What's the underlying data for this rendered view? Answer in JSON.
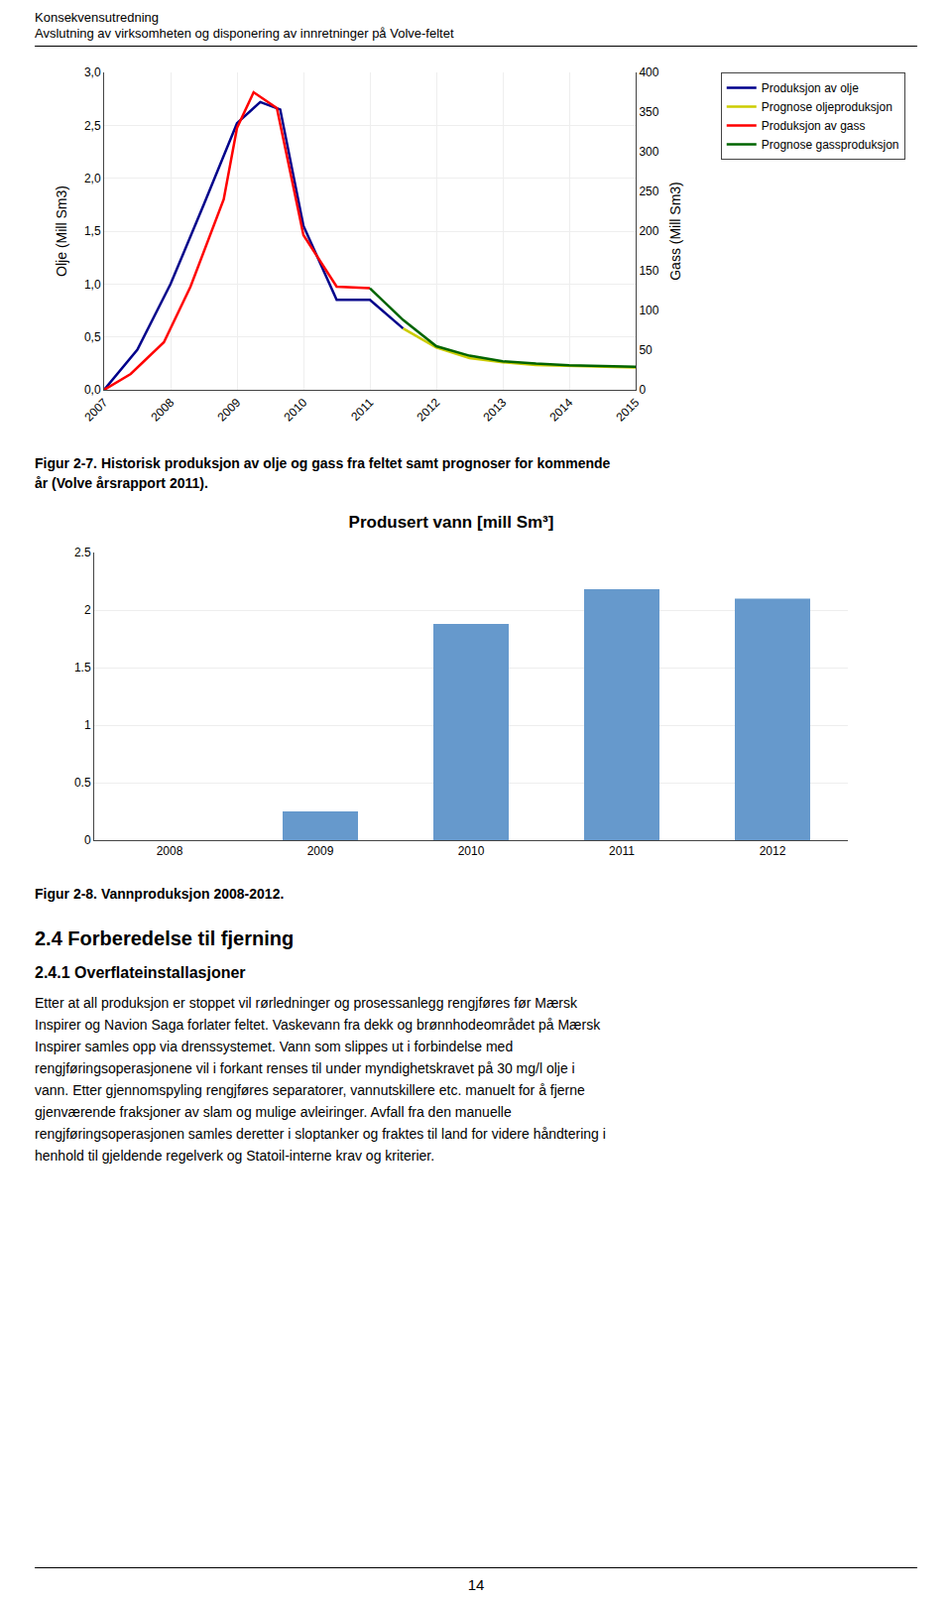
{
  "header": [
    "Konsekvensutredning",
    "Avslutning av virksomheten og disponering av innretninger på Volve-feltet"
  ],
  "chart_data": [
    {
      "type": "line",
      "ylabel": "Olje (Mill Sm3)",
      "y2label": "Gass (Mill Sm3)",
      "xlim": [
        2007,
        2015
      ],
      "xticks": [
        2007,
        2008,
        2009,
        2010,
        2011,
        2012,
        2013,
        2014,
        2015
      ],
      "ylim": [
        0,
        3.0
      ],
      "yticks": [
        {
          "value": 0.0,
          "label": "0,0"
        },
        {
          "value": 0.5,
          "label": "0,5"
        },
        {
          "value": 1.0,
          "label": "1,0"
        },
        {
          "value": 1.5,
          "label": "1,5"
        },
        {
          "value": 2.0,
          "label": "2,0"
        },
        {
          "value": 2.5,
          "label": "2,5"
        },
        {
          "value": 3.0,
          "label": "3,0"
        }
      ],
      "y2lim": [
        0,
        400
      ],
      "y2ticks": [
        0,
        50,
        100,
        150,
        200,
        250,
        300,
        350,
        400
      ],
      "grid": true,
      "legend": "right",
      "series": [
        {
          "name": "Produksjon av olje",
          "color": "#00008B",
          "axis": "y",
          "x": [
            2007.0,
            2007.5,
            2008.0,
            2008.5,
            2009.0,
            2009.35,
            2009.65,
            2010.0,
            2010.5,
            2011.0,
            2011.5
          ],
          "values": [
            0.0,
            0.38,
            1.0,
            1.75,
            2.52,
            2.72,
            2.65,
            1.55,
            0.85,
            0.85,
            0.58
          ]
        },
        {
          "name": "Prognose oljeproduksjon",
          "color": "#CCCC00",
          "axis": "y",
          "x": [
            2011.5,
            2012.0,
            2012.5,
            2013.0,
            2013.5,
            2014.0,
            2014.5,
            2015.0
          ],
          "values": [
            0.58,
            0.4,
            0.3,
            0.26,
            0.235,
            0.225,
            0.215,
            0.21
          ]
        },
        {
          "name": "Produksjon av gass",
          "color": "#FF0000",
          "axis": "y2",
          "x": [
            2007.0,
            2007.4,
            2007.9,
            2008.3,
            2008.8,
            2009.0,
            2009.25,
            2009.6,
            2010.0,
            2010.5,
            2011.0
          ],
          "values": [
            0.0,
            20,
            60,
            130,
            240,
            330,
            375,
            355,
            195,
            130,
            128
          ]
        },
        {
          "name": "Prognose gassproduksjon",
          "color": "#006400",
          "axis": "y2",
          "x": [
            2011.0,
            2011.5,
            2012.0,
            2012.5,
            2013.0,
            2013.5,
            2014.0,
            2014.5,
            2015.0
          ],
          "values": [
            128,
            88,
            55,
            43,
            36,
            33,
            31,
            30,
            29
          ]
        }
      ],
      "caption": [
        "Figur 2-7. Historisk produksjon av olje og gass fra feltet samt prognoser for kommende",
        "år (Volve årsrapport 2011)."
      ]
    },
    {
      "type": "bar",
      "title": "Produsert vann [mill Sm³]",
      "categories": [
        "2008",
        "2009",
        "2010",
        "2011",
        "2012"
      ],
      "values": [
        0.0,
        0.25,
        1.88,
        2.18,
        2.1
      ],
      "color": "#6699CC",
      "ylim": [
        0,
        2.5
      ],
      "yticks": [
        0,
        0.5,
        1,
        1.5,
        2,
        2.5
      ],
      "grid": true,
      "caption": [
        "Figur 2-8. Vannproduksjon 2008-2012."
      ]
    }
  ],
  "section_title": "2.4   Forberedelse til fjerning",
  "subsection_title": "2.4.1   Overflateinstallasjoner",
  "body": [
    "Etter at all produksjon er stoppet vil rørledninger og prosessanlegg rengjføres før Mærsk",
    "Inspirer og Navion Saga forlater feltet. Vaskevann fra dekk og brønnhodeområdet på Mærsk",
    "Inspirer samles opp via drenssystemet. Vann som slippes ut i forbindelse med",
    "rengjføringsoperasjonene vil i forkant renses til under myndighetskravet på 30 mg/l olje i",
    "vann. Etter gjennomspyling rengjføres separatorer, vannutskillere etc. manuelt for å fjerne",
    "gjenværende fraksjoner av slam og mulige avleiringer. Avfall fra den manuelle",
    "rengjføringsoperasjonen samles deretter i sloptanker og fraktes til land for videre håndtering i",
    "henhold til gjeldende regelverk og Statoil-interne krav og kriterier."
  ],
  "page_number": "14"
}
